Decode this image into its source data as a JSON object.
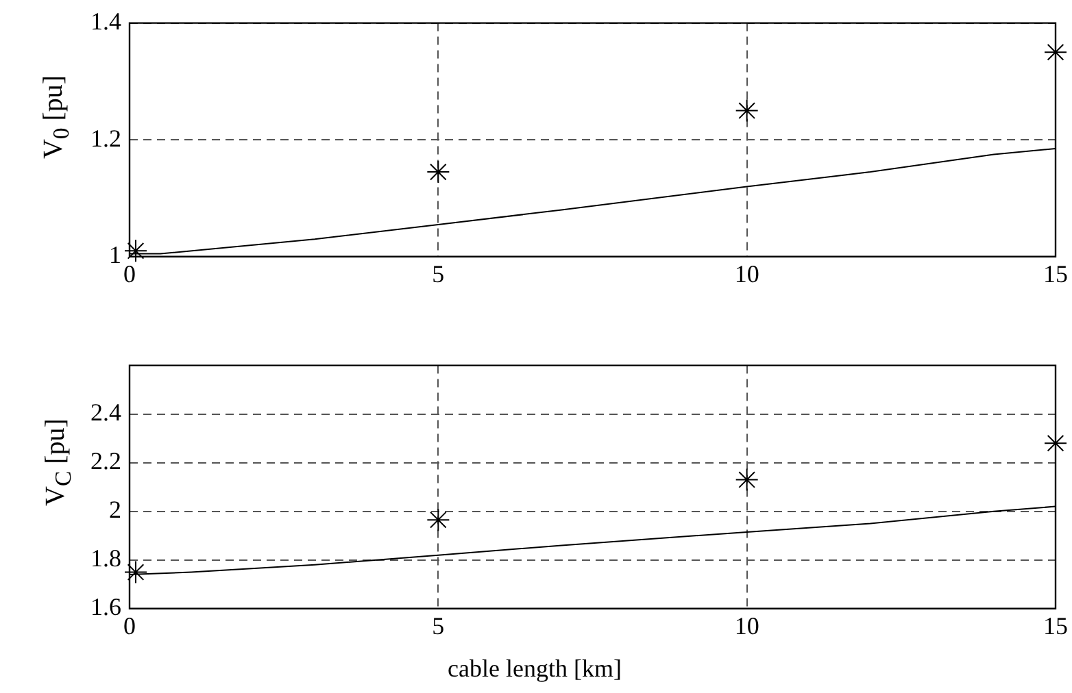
{
  "chart_data": [
    {
      "type": "line",
      "ylabel": "V$_{0}$ [pu]",
      "xlim": [
        0,
        15
      ],
      "xticks": [
        0,
        5,
        10,
        15
      ],
      "ylim": [
        1,
        1.4
      ],
      "yticks": [
        1,
        1.2,
        1.4
      ],
      "grid": true,
      "legend": false,
      "series": [
        {
          "type": "line",
          "color": "#000000",
          "marker": "none",
          "x": [
            0,
            0.5,
            3,
            5,
            7,
            10,
            12,
            14,
            15
          ],
          "values": [
            1.005,
            1.005,
            1.03,
            1.055,
            1.08,
            1.12,
            1.145,
            1.175,
            1.185
          ]
        },
        {
          "type": "scatter",
          "color": "#000000",
          "marker": "cross",
          "x": [
            0.1,
            5,
            10,
            15
          ],
          "values": [
            1.01,
            1.145,
            1.25,
            1.35
          ]
        }
      ]
    },
    {
      "type": "line",
      "ylabel": "V$_{C}$ [pu]",
      "xlabel": "cable length  [km]",
      "xlim": [
        0,
        15
      ],
      "xticks": [
        0,
        5,
        10,
        15
      ],
      "ylim": [
        1.6,
        2.6
      ],
      "yticks": [
        1.6,
        1.8,
        2,
        2.2,
        2.4
      ],
      "grid": true,
      "legend": false,
      "series": [
        {
          "type": "line",
          "color": "#000000",
          "marker": "none",
          "x": [
            0,
            1,
            3,
            5,
            7,
            10,
            12,
            14,
            15
          ],
          "values": [
            1.74,
            1.75,
            1.78,
            1.82,
            1.86,
            1.915,
            1.95,
            2.0,
            2.02
          ]
        },
        {
          "type": "scatter",
          "color": "#000000",
          "marker": "cross",
          "x": [
            0.1,
            5,
            10,
            15
          ],
          "values": [
            1.75,
            1.965,
            2.13,
            2.28
          ]
        }
      ]
    }
  ]
}
